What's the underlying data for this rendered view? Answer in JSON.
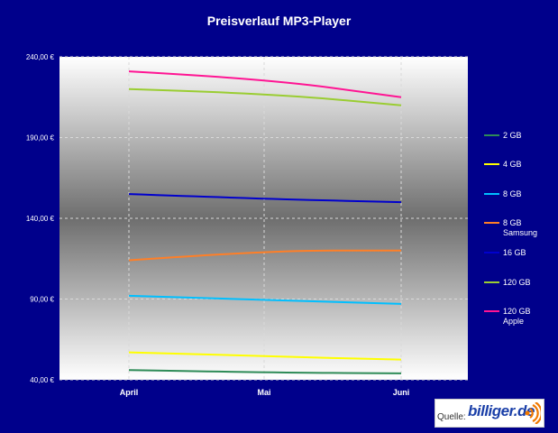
{
  "chart_data": {
    "type": "line",
    "title": "Preisverlauf MP3-Player",
    "categories": [
      "April",
      "Mai",
      "Juni"
    ],
    "ylim": [
      40,
      240
    ],
    "yticks": [
      "240,00 €",
      "190,00 €",
      "140,00 €",
      "90,00 €",
      "40,00 €"
    ],
    "ytick_values": [
      240,
      190,
      140,
      90,
      40
    ],
    "grid": true,
    "legend_position": "right",
    "series": [
      {
        "name": "2 GB",
        "values": [
          46,
          44.5,
          44
        ],
        "color": "#2e8b57"
      },
      {
        "name": "4 GB",
        "values": [
          57,
          54.5,
          52.5
        ],
        "color": "#ffff00"
      },
      {
        "name": "8 GB",
        "values": [
          92,
          89.5,
          87
        ],
        "color": "#00bfff"
      },
      {
        "name": "8 GB Samsung",
        "values": [
          114,
          120,
          120
        ],
        "color": "#ff7f27"
      },
      {
        "name": "16 GB",
        "values": [
          155,
          152,
          150
        ],
        "color": "#0000cd"
      },
      {
        "name": "120 GB",
        "values": [
          220,
          217.5,
          210
        ],
        "color": "#9acd32"
      },
      {
        "name": "120 GB Apple",
        "values": [
          231,
          226.5,
          215
        ],
        "color": "#ff1493"
      }
    ]
  },
  "source": {
    "label": "Quelle:",
    "logo": "billiger.de"
  }
}
